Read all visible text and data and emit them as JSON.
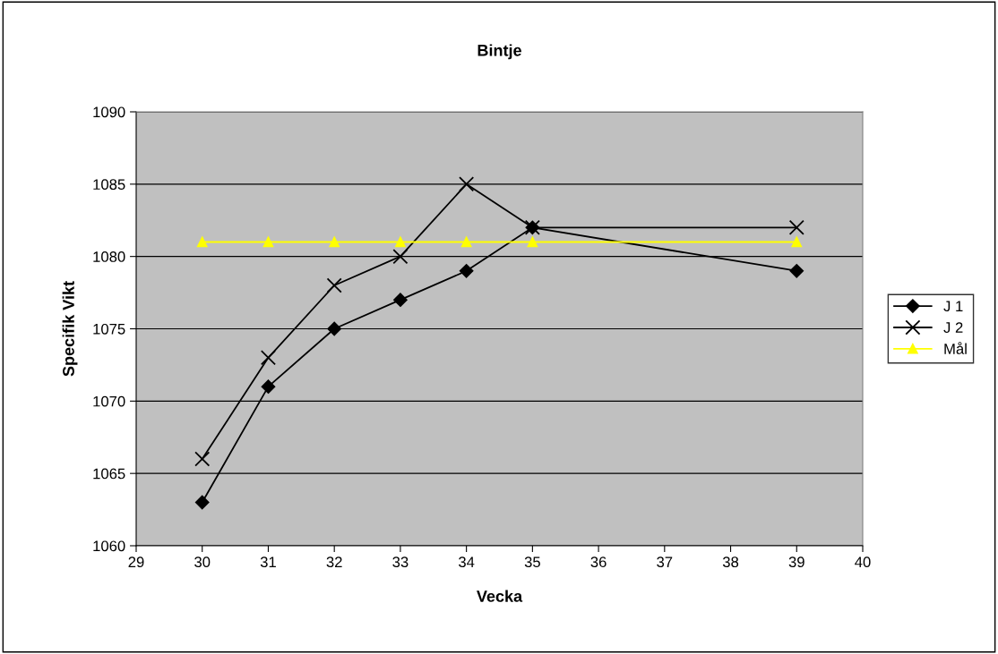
{
  "chart_data": {
    "type": "line",
    "title": "Bintje",
    "xlabel": "Vecka",
    "ylabel": "Specifik Vikt",
    "x": [
      30,
      31,
      32,
      33,
      34,
      35,
      39
    ],
    "series": [
      {
        "name": "J 1",
        "color": "#000000",
        "marker": "diamond",
        "values": [
          1063,
          1071,
          1075,
          1077,
          1079,
          1082,
          1079
        ]
      },
      {
        "name": "J 2",
        "color": "#000000",
        "marker": "cross",
        "values": [
          1066,
          1073,
          1078,
          1080,
          1085,
          1082,
          1082
        ]
      },
      {
        "name": "Mål",
        "color": "#ffff00",
        "marker": "triangle",
        "values": [
          1081,
          1081,
          1081,
          1081,
          1081,
          1081,
          1081
        ]
      }
    ],
    "xlim": [
      29,
      40
    ],
    "xticks": [
      29,
      30,
      31,
      32,
      33,
      34,
      35,
      36,
      37,
      38,
      39,
      40
    ],
    "ylim": [
      1060,
      1090
    ],
    "yticks": [
      1060,
      1065,
      1070,
      1075,
      1080,
      1085,
      1090
    ],
    "grid": "y",
    "legend": "right",
    "line_style": "solid"
  }
}
